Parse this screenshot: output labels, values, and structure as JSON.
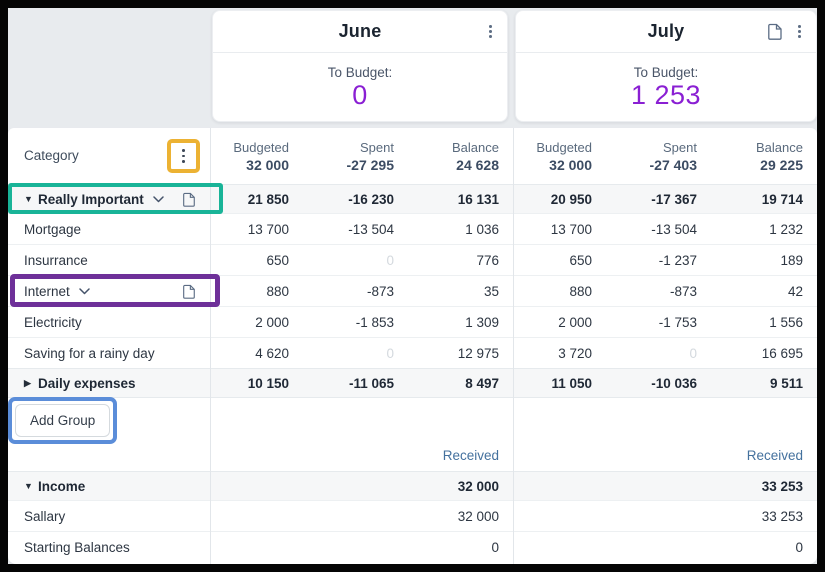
{
  "colors": {
    "to_budget_accent": "#8a1fd3",
    "received_text": "#44719e",
    "annotation_orange": "#ecb233",
    "annotation_teal": "#19b498",
    "annotation_purple": "#6e3099",
    "annotation_blue": "#5b8dd9"
  },
  "months": [
    {
      "name": "June",
      "to_budget_label": "To Budget:",
      "to_budget_value": "0",
      "icons": [
        "kebab-menu-icon"
      ]
    },
    {
      "name": "July",
      "to_budget_label": "To Budget:",
      "to_budget_value": "1 253",
      "icons": [
        "document-icon",
        "kebab-menu-icon"
      ]
    }
  ],
  "table": {
    "category_header": "Category",
    "column_labels": [
      "Budgeted",
      "Spent",
      "Balance"
    ],
    "totals": {
      "june": {
        "budgeted": "32 000",
        "spent": "-27 295",
        "balance": "24 628"
      },
      "july": {
        "budgeted": "32 000",
        "spent": "-27 403",
        "balance": "29 225"
      }
    },
    "rows": [
      {
        "label": "Really Important",
        "group": true,
        "expanded": true,
        "chevron": true,
        "doc": true,
        "annotation": "teal",
        "june": [
          "21 850",
          "-16 230",
          "16 131"
        ],
        "july": [
          "20 950",
          "-17 367",
          "19 714"
        ]
      },
      {
        "label": "Mortgage",
        "june": [
          "13 700",
          "-13 504",
          "1 036"
        ],
        "july": [
          "13 700",
          "-13 504",
          "1 232"
        ]
      },
      {
        "label": "Insurrance",
        "june": [
          "650",
          "0",
          "776"
        ],
        "july": [
          "650",
          "-1 237",
          "189"
        ]
      },
      {
        "label": "Internet",
        "chevron": true,
        "doc": true,
        "annotation": "purple",
        "june": [
          "880",
          "-873",
          "35"
        ],
        "july": [
          "880",
          "-873",
          "42"
        ]
      },
      {
        "label": "Electricity",
        "june": [
          "2 000",
          "-1 853",
          "1 309"
        ],
        "july": [
          "2 000",
          "-1 753",
          "1 556"
        ]
      },
      {
        "label": "Saving for a rainy day",
        "june": [
          "4 620",
          "0",
          "12 975"
        ],
        "july": [
          "3 720",
          "0",
          "16 695"
        ]
      },
      {
        "label": "Daily expenses",
        "group": true,
        "expanded": false,
        "june": [
          "10 150",
          "-11 065",
          "8 497"
        ],
        "july": [
          "11 050",
          "-10 036",
          "9 511"
        ]
      }
    ],
    "add_group_label": "Add Group",
    "received_label": "Received",
    "income_rows": [
      {
        "label": "Income",
        "group": true,
        "expanded": true,
        "june": "32 000",
        "july": "33 253"
      },
      {
        "label": "Sallary",
        "june": "32 000",
        "july": "33 253"
      },
      {
        "label": "Starting Balances",
        "june": "0",
        "july": "0"
      }
    ]
  }
}
